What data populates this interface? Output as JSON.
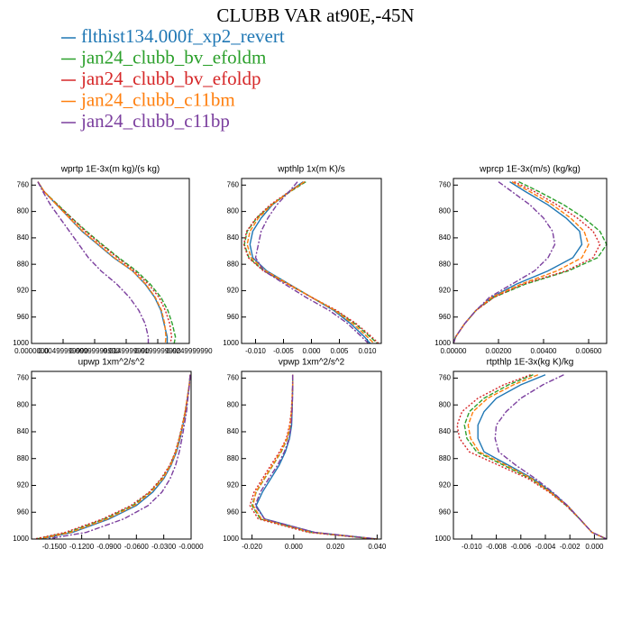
{
  "title": "CLUBB VAR at90E,-45N",
  "legend": [
    {
      "name": "flthist134.000f_xp2_revert",
      "color": "#1f77b4",
      "style": "solid"
    },
    {
      "name": "jan24_clubb_bv_efoldm",
      "color": "#2ca02c",
      "style": "dashed"
    },
    {
      "name": "jan24_clubb_bv_efoldp",
      "color": "#d62728",
      "style": "dotted"
    },
    {
      "name": "jan24_clubb_c11bm",
      "color": "#ff7f0e",
      "style": "dashed"
    },
    {
      "name": "jan24_clubb_c11bp",
      "color": "#7b3f9e",
      "style": "dashdot"
    }
  ],
  "chart_data": [
    {
      "type": "line",
      "title": "wprtp  1E-3x(m kg)/(s kg)",
      "y": [
        755,
        770,
        790,
        810,
        830,
        850,
        870,
        890,
        910,
        930,
        950,
        970,
        990,
        1000
      ],
      "ylim": [
        1000,
        750
      ],
      "yticks": [
        760,
        800,
        840,
        880,
        920,
        960,
        1000
      ],
      "xlim": [
        0,
        0.025
      ],
      "xticks": [
        {
          "value": 0,
          "label": "0.0000000"
        },
        {
          "value": 0.005,
          "label": "0.00499999990"
        },
        {
          "value": 0.01,
          "label": "0.00999999990"
        },
        {
          "value": 0.015,
          "label": "0.0149999990"
        },
        {
          "value": 0.02,
          "label": "0.0199999990"
        },
        {
          "value": 0.025,
          "label": "0.0249999990"
        }
      ],
      "series": [
        {
          "values": [
            0.001,
            0.002,
            0.004,
            0.006,
            0.008,
            0.0105,
            0.013,
            0.016,
            0.018,
            0.0195,
            0.0205,
            0.021,
            0.0215,
            0.0215
          ]
        },
        {
          "values": [
            0.001,
            0.002,
            0.0042,
            0.0064,
            0.0087,
            0.0112,
            0.0138,
            0.0166,
            0.0188,
            0.0205,
            0.0216,
            0.0223,
            0.0228,
            0.0226
          ]
        },
        {
          "values": [
            0.001,
            0.002,
            0.0041,
            0.0063,
            0.0085,
            0.011,
            0.0136,
            0.0163,
            0.0185,
            0.0202,
            0.0212,
            0.0219,
            0.0222,
            0.022
          ]
        },
        {
          "values": [
            0.001,
            0.002,
            0.004,
            0.006,
            0.0081,
            0.0106,
            0.0131,
            0.016,
            0.0181,
            0.0196,
            0.0206,
            0.0211,
            0.0213,
            0.0212
          ]
        },
        {
          "values": [
            0.001,
            0.0018,
            0.003,
            0.0045,
            0.006,
            0.0075,
            0.009,
            0.011,
            0.0135,
            0.0155,
            0.017,
            0.018,
            0.0185,
            0.0185
          ]
        }
      ]
    },
    {
      "type": "line",
      "title": "wpthlp  1x(m K)/s",
      "y": [
        755,
        770,
        790,
        810,
        830,
        850,
        870,
        890,
        910,
        930,
        950,
        970,
        990,
        1000
      ],
      "ylim": [
        1000,
        750
      ],
      "yticks": [
        760,
        800,
        840,
        880,
        920,
        960,
        1000
      ],
      "xlim": [
        -0.0125,
        0.0125
      ],
      "xticks": [
        {
          "value": -0.01,
          "label": "-0.010"
        },
        {
          "value": -0.005,
          "label": "-0.005"
        },
        {
          "value": 0,
          "label": "0.000"
        },
        {
          "value": 0.005,
          "label": "0.005"
        },
        {
          "value": 0.01,
          "label": "0.010"
        }
      ],
      "series": [
        {
          "values": [
            -0.0015,
            -0.004,
            -0.007,
            -0.009,
            -0.0105,
            -0.011,
            -0.0105,
            -0.008,
            -0.004,
            0,
            0.004,
            0.007,
            0.0095,
            0.0105
          ]
        },
        {
          "values": [
            -0.001,
            -0.0038,
            -0.0072,
            -0.0098,
            -0.0115,
            -0.012,
            -0.0112,
            -0.0085,
            -0.0042,
            0,
            0.0043,
            0.0078,
            0.0105,
            0.0118
          ]
        },
        {
          "values": [
            -0.0012,
            -0.004,
            -0.0074,
            -0.0099,
            -0.0116,
            -0.0121,
            -0.0113,
            -0.0086,
            -0.0043,
            0,
            0.0045,
            0.008,
            0.0108,
            0.012
          ]
        },
        {
          "values": [
            -0.0013,
            -0.0039,
            -0.0071,
            -0.0095,
            -0.011,
            -0.0115,
            -0.0108,
            -0.0082,
            -0.0041,
            0,
            0.0042,
            0.0074,
            0.01,
            0.0112
          ]
        },
        {
          "values": [
            -0.0025,
            -0.004,
            -0.0062,
            -0.0078,
            -0.009,
            -0.0095,
            -0.01,
            -0.0085,
            -0.0048,
            -0.001,
            0.0032,
            0.0065,
            0.009,
            0.0102
          ]
        }
      ]
    },
    {
      "type": "line",
      "title": "wprcp  1E-3x(m/s) (kg/kg)",
      "y": [
        755,
        770,
        790,
        810,
        830,
        850,
        870,
        890,
        910,
        930,
        950,
        970,
        990,
        1000
      ],
      "ylim": [
        1000,
        750
      ],
      "yticks": [
        760,
        800,
        840,
        880,
        920,
        960,
        1000
      ],
      "xlim": [
        0,
        0.0068
      ],
      "xticks": [
        {
          "value": 0,
          "label": "0.00000"
        },
        {
          "value": 0.002,
          "label": "0.00200"
        },
        {
          "value": 0.004,
          "label": "0.00400"
        },
        {
          "value": 0.006,
          "label": "0.00600"
        }
      ],
      "series": [
        {
          "values": [
            0.0025,
            0.0032,
            0.0042,
            0.005,
            0.0056,
            0.0057,
            0.0053,
            0.0042,
            0.0028,
            0.0017,
            0.001,
            0.0005,
            0.0001,
            0
          ]
        },
        {
          "values": [
            0.0029,
            0.0038,
            0.0049,
            0.0058,
            0.0065,
            0.0068,
            0.0064,
            0.0051,
            0.0032,
            0.0018,
            0.001,
            0.0005,
            0.0001,
            0
          ]
        },
        {
          "values": [
            0.0027,
            0.0036,
            0.0046,
            0.0055,
            0.0062,
            0.0065,
            0.0062,
            0.005,
            0.0031,
            0.0018,
            0.001,
            0.0005,
            0.0001,
            0
          ]
        },
        {
          "values": [
            0.0026,
            0.0034,
            0.0044,
            0.0052,
            0.0058,
            0.006,
            0.0057,
            0.0046,
            0.003,
            0.0017,
            0.001,
            0.0005,
            0.0001,
            0
          ]
        },
        {
          "values": [
            0.002,
            0.0026,
            0.0034,
            0.004,
            0.0044,
            0.0045,
            0.0042,
            0.0036,
            0.0026,
            0.0016,
            0.001,
            0.0005,
            0.0001,
            0
          ]
        }
      ]
    },
    {
      "type": "line",
      "title": "upwp  1xm^2/s^2",
      "y": [
        755,
        770,
        790,
        810,
        830,
        850,
        870,
        890,
        910,
        930,
        950,
        970,
        990,
        1000
      ],
      "ylim": [
        1000,
        750
      ],
      "yticks": [
        760,
        800,
        840,
        880,
        920,
        960,
        1000
      ],
      "xlim": [
        -0.175,
        0
      ],
      "xticks": [
        {
          "value": -0.15,
          "label": "-0.1500"
        },
        {
          "value": -0.12,
          "label": "-0.1200"
        },
        {
          "value": -0.09,
          "label": "-0.0900"
        },
        {
          "value": -0.06,
          "label": "-0.0600"
        },
        {
          "value": -0.03,
          "label": "-0.0300"
        },
        {
          "value": 0,
          "label": "-0.0000"
        }
      ],
      "series": [
        {
          "values": [
            -0.001,
            -0.002,
            -0.004,
            -0.006,
            -0.009,
            -0.012,
            -0.016,
            -0.022,
            -0.03,
            -0.042,
            -0.06,
            -0.09,
            -0.13,
            -0.165
          ]
        },
        {
          "values": [
            -0.001,
            -0.002,
            -0.0042,
            -0.0065,
            -0.0095,
            -0.013,
            -0.017,
            -0.023,
            -0.032,
            -0.045,
            -0.064,
            -0.095,
            -0.135,
            -0.17
          ]
        },
        {
          "values": [
            -0.001,
            -0.002,
            -0.0043,
            -0.0066,
            -0.0097,
            -0.0132,
            -0.0173,
            -0.0235,
            -0.033,
            -0.046,
            -0.066,
            -0.097,
            -0.138,
            -0.172
          ]
        },
        {
          "values": [
            -0.001,
            -0.002,
            -0.0041,
            -0.0062,
            -0.0092,
            -0.0125,
            -0.0165,
            -0.0225,
            -0.031,
            -0.044,
            -0.062,
            -0.092,
            -0.132,
            -0.167
          ]
        },
        {
          "values": [
            -0.001,
            -0.0018,
            -0.0035,
            -0.005,
            -0.0075,
            -0.01,
            -0.013,
            -0.017,
            -0.023,
            -0.032,
            -0.047,
            -0.074,
            -0.115,
            -0.158
          ]
        }
      ]
    },
    {
      "type": "line",
      "title": "vpwp  1xm^2/s^2",
      "y": [
        755,
        770,
        790,
        810,
        830,
        850,
        870,
        890,
        910,
        930,
        950,
        970,
        990,
        1000
      ],
      "ylim": [
        1000,
        750
      ],
      "yticks": [
        760,
        800,
        840,
        880,
        920,
        960,
        1000
      ],
      "xlim": [
        -0.025,
        0.042
      ],
      "xticks": [
        {
          "value": -0.02,
          "label": "-0.020"
        },
        {
          "value": 0,
          "label": "0.000"
        },
        {
          "value": 0.02,
          "label": "0.020"
        },
        {
          "value": 0.04,
          "label": "0.040"
        }
      ],
      "series": [
        {
          "values": [
            -0.0005,
            -0.0005,
            -0.0006,
            -0.0008,
            -0.001,
            -0.002,
            -0.004,
            -0.007,
            -0.011,
            -0.015,
            -0.018,
            -0.014,
            0.01,
            0.04
          ]
        },
        {
          "values": [
            -0.0005,
            -0.0005,
            -0.0007,
            -0.001,
            -0.0015,
            -0.003,
            -0.006,
            -0.01,
            -0.014,
            -0.018,
            -0.02,
            -0.016,
            0.008,
            0.039
          ]
        },
        {
          "values": [
            -0.0005,
            -0.0005,
            -0.0008,
            -0.0012,
            -0.002,
            -0.0035,
            -0.0068,
            -0.011,
            -0.015,
            -0.019,
            -0.021,
            -0.017,
            0.007,
            0.039
          ]
        },
        {
          "values": [
            -0.0005,
            -0.0005,
            -0.0007,
            -0.001,
            -0.0017,
            -0.0032,
            -0.0062,
            -0.0102,
            -0.0142,
            -0.0182,
            -0.0195,
            -0.0155,
            0.009,
            0.04
          ]
        },
        {
          "values": [
            -0.0005,
            -0.0005,
            -0.0006,
            -0.0008,
            -0.0012,
            -0.0022,
            -0.0045,
            -0.0078,
            -0.012,
            -0.016,
            -0.0185,
            -0.014,
            0.01,
            0.04
          ]
        }
      ]
    },
    {
      "type": "line",
      "title": "rtpthlp  1E-3x(kg K)/kg",
      "y": [
        755,
        770,
        790,
        810,
        830,
        850,
        870,
        890,
        910,
        930,
        950,
        970,
        990,
        1000
      ],
      "ylim": [
        1000,
        750
      ],
      "yticks": [
        760,
        800,
        840,
        880,
        920,
        960,
        1000
      ],
      "xlim": [
        -0.0115,
        0.001
      ],
      "xticks": [
        {
          "value": -0.01,
          "label": "-0.010"
        },
        {
          "value": -0.008,
          "label": "-0.008"
        },
        {
          "value": -0.006,
          "label": "-0.006"
        },
        {
          "value": -0.004,
          "label": "-0.004"
        },
        {
          "value": -0.002,
          "label": "-0.002"
        },
        {
          "value": 0,
          "label": "0.000"
        }
      ],
      "series": [
        {
          "values": [
            -0.004,
            -0.006,
            -0.008,
            -0.009,
            -0.0095,
            -0.0095,
            -0.009,
            -0.007,
            -0.005,
            -0.0035,
            -0.0022,
            -0.0012,
            -0.0002,
            0.001
          ]
        },
        {
          "values": [
            -0.005,
            -0.007,
            -0.009,
            -0.0102,
            -0.0106,
            -0.0104,
            -0.0096,
            -0.0074,
            -0.0052,
            -0.0036,
            -0.0023,
            -0.0012,
            -0.0002,
            0.001
          ]
        },
        {
          "values": [
            -0.0052,
            -0.0074,
            -0.0095,
            -0.0108,
            -0.0112,
            -0.011,
            -0.0102,
            -0.0078,
            -0.0054,
            -0.0037,
            -0.0023,
            -0.0012,
            -0.0002,
            0.001
          ]
        },
        {
          "values": [
            -0.0046,
            -0.0066,
            -0.0087,
            -0.0099,
            -0.0103,
            -0.0101,
            -0.0094,
            -0.0072,
            -0.0051,
            -0.0036,
            -0.0022,
            -0.0012,
            -0.0002,
            0.001
          ]
        },
        {
          "values": [
            -0.0025,
            -0.0042,
            -0.006,
            -0.0072,
            -0.008,
            -0.0081,
            -0.0078,
            -0.0064,
            -0.0048,
            -0.0034,
            -0.0022,
            -0.0012,
            -0.0002,
            0.001
          ]
        }
      ]
    }
  ]
}
